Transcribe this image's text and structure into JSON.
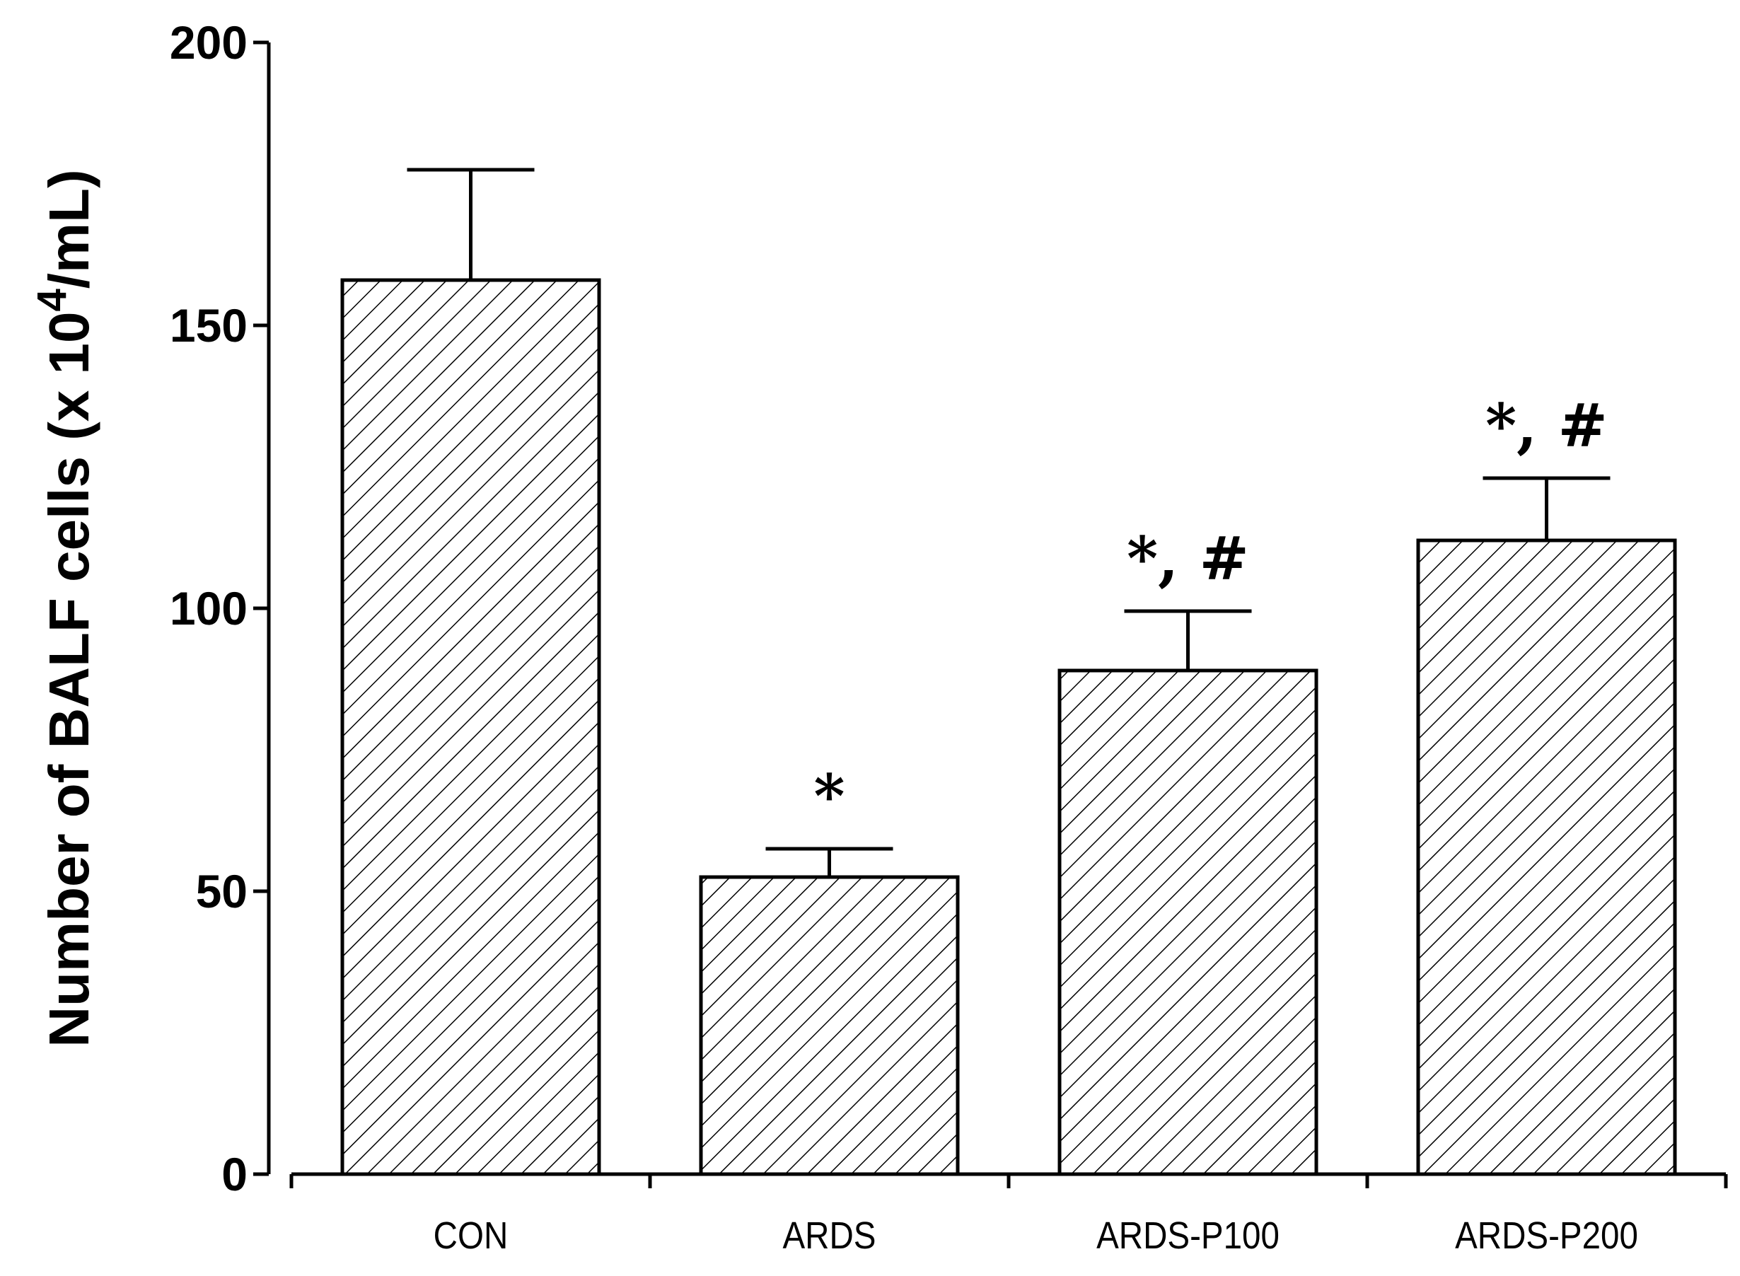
{
  "chart_data": {
    "type": "bar",
    "title": "",
    "xlabel": "",
    "ylabel": {
      "prefix": "Number of BALF cells (x 10",
      "superscript": "4",
      "suffix": "/mL)"
    },
    "categories": [
      "CON",
      "ARDS",
      "ARDS-P100",
      "ARDS-P200"
    ],
    "values": [
      158,
      52.5,
      89,
      112
    ],
    "error": [
      19.5,
      5,
      10.5,
      11
    ],
    "annotations": [
      "",
      "*",
      "*, #",
      "*, #"
    ],
    "ylim": [
      0,
      200
    ],
    "yticks": [
      0,
      50,
      100,
      150,
      200
    ],
    "grid": false,
    "fill": "diagonal-hatch",
    "bar_color": "#ffffff",
    "edge_color": "#000000"
  }
}
